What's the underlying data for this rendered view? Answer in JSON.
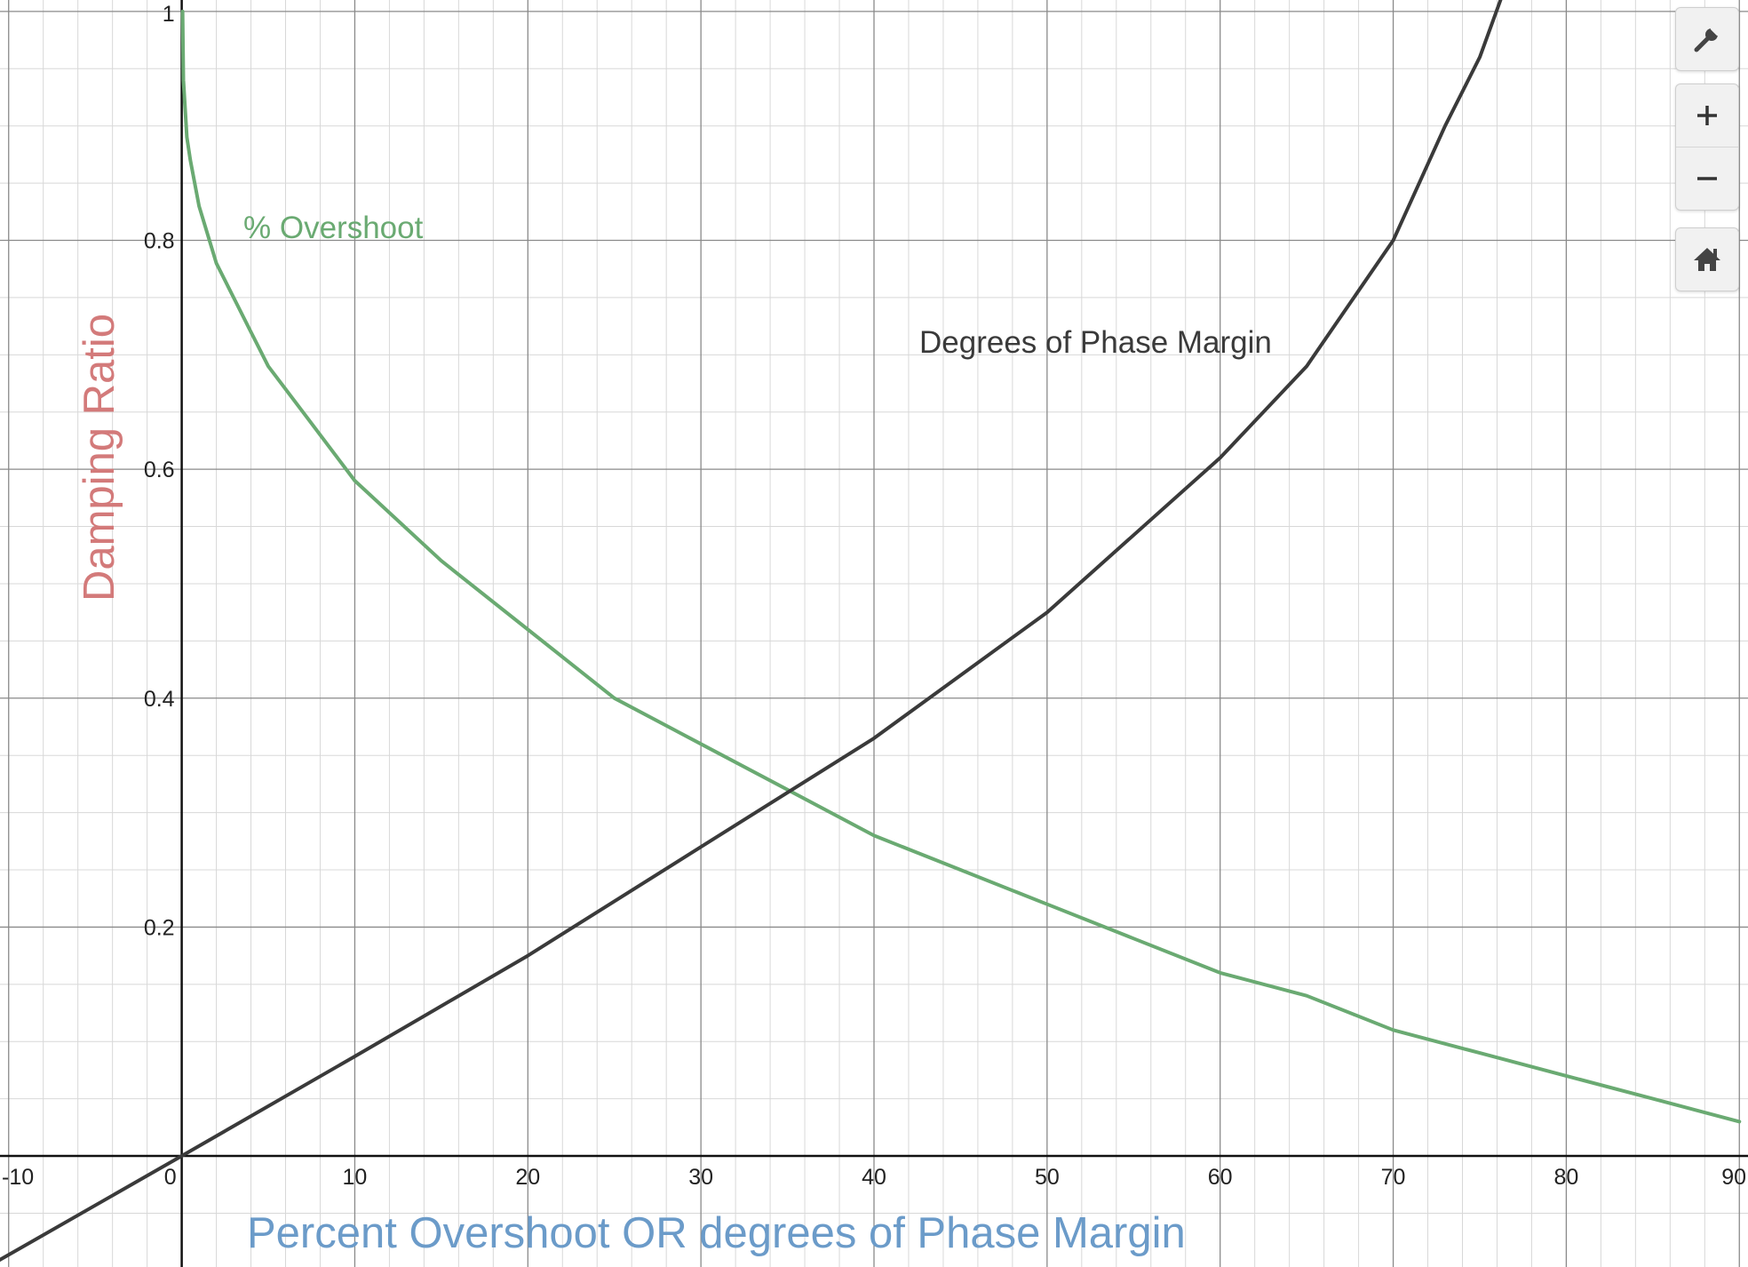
{
  "chart_data": {
    "type": "line",
    "xlabel": "Percent Overshoot OR degrees of Phase Margin",
    "ylabel": "Damping Ratio",
    "xlim": [
      -10.5,
      90.5
    ],
    "ylim": [
      -0.097,
      1.01
    ],
    "x_ticks": [
      -10,
      0,
      10,
      20,
      30,
      40,
      50,
      60,
      70,
      80,
      90
    ],
    "y_ticks": [
      0.2,
      0.4,
      0.6,
      0.8,
      1
    ],
    "grid": true,
    "series": [
      {
        "name": "% Overshoot",
        "color": "#6aaa72",
        "label_position": "upper-left",
        "points": [
          [
            0.05,
            1.0
          ],
          [
            0.1,
            0.94
          ],
          [
            0.3,
            0.89
          ],
          [
            0.5,
            0.87
          ],
          [
            1,
            0.83
          ],
          [
            2,
            0.78
          ],
          [
            3,
            0.75
          ],
          [
            4,
            0.72
          ],
          [
            5,
            0.69
          ],
          [
            7,
            0.65
          ],
          [
            10,
            0.59
          ],
          [
            15,
            0.52
          ],
          [
            20,
            0.46
          ],
          [
            25,
            0.4
          ],
          [
            30,
            0.36
          ],
          [
            35,
            0.32
          ],
          [
            40,
            0.28
          ],
          [
            45,
            0.25
          ],
          [
            50,
            0.22
          ],
          [
            55,
            0.19
          ],
          [
            60,
            0.16
          ],
          [
            65,
            0.14
          ],
          [
            70,
            0.11
          ],
          [
            75,
            0.09
          ],
          [
            80,
            0.07
          ],
          [
            85,
            0.05
          ],
          [
            90,
            0.03
          ]
        ]
      },
      {
        "name": "Degrees of Phase Margin",
        "color": "#3a3a3a",
        "label_position": "upper-middle",
        "points": [
          [
            -11,
            -0.095
          ],
          [
            0,
            0.0
          ],
          [
            10,
            0.087
          ],
          [
            20,
            0.175
          ],
          [
            30,
            0.27
          ],
          [
            40,
            0.365
          ],
          [
            50,
            0.475
          ],
          [
            60,
            0.61
          ],
          [
            65,
            0.69
          ],
          [
            70,
            0.8
          ],
          [
            73,
            0.9
          ],
          [
            75,
            0.96
          ],
          [
            76.2,
            1.01
          ]
        ]
      }
    ]
  },
  "toolbar": {
    "settings_icon": "wrench-icon",
    "zoom_in_icon": "plus-icon",
    "zoom_out_icon": "minus-icon",
    "home_icon": "home-icon"
  },
  "colors": {
    "axis_title_y": "#d37a7a",
    "axis_title_x": "#6b9bc9",
    "major_grid": "#8a8a8a",
    "minor_grid": "#d8d8d8",
    "axis": "#111111"
  }
}
